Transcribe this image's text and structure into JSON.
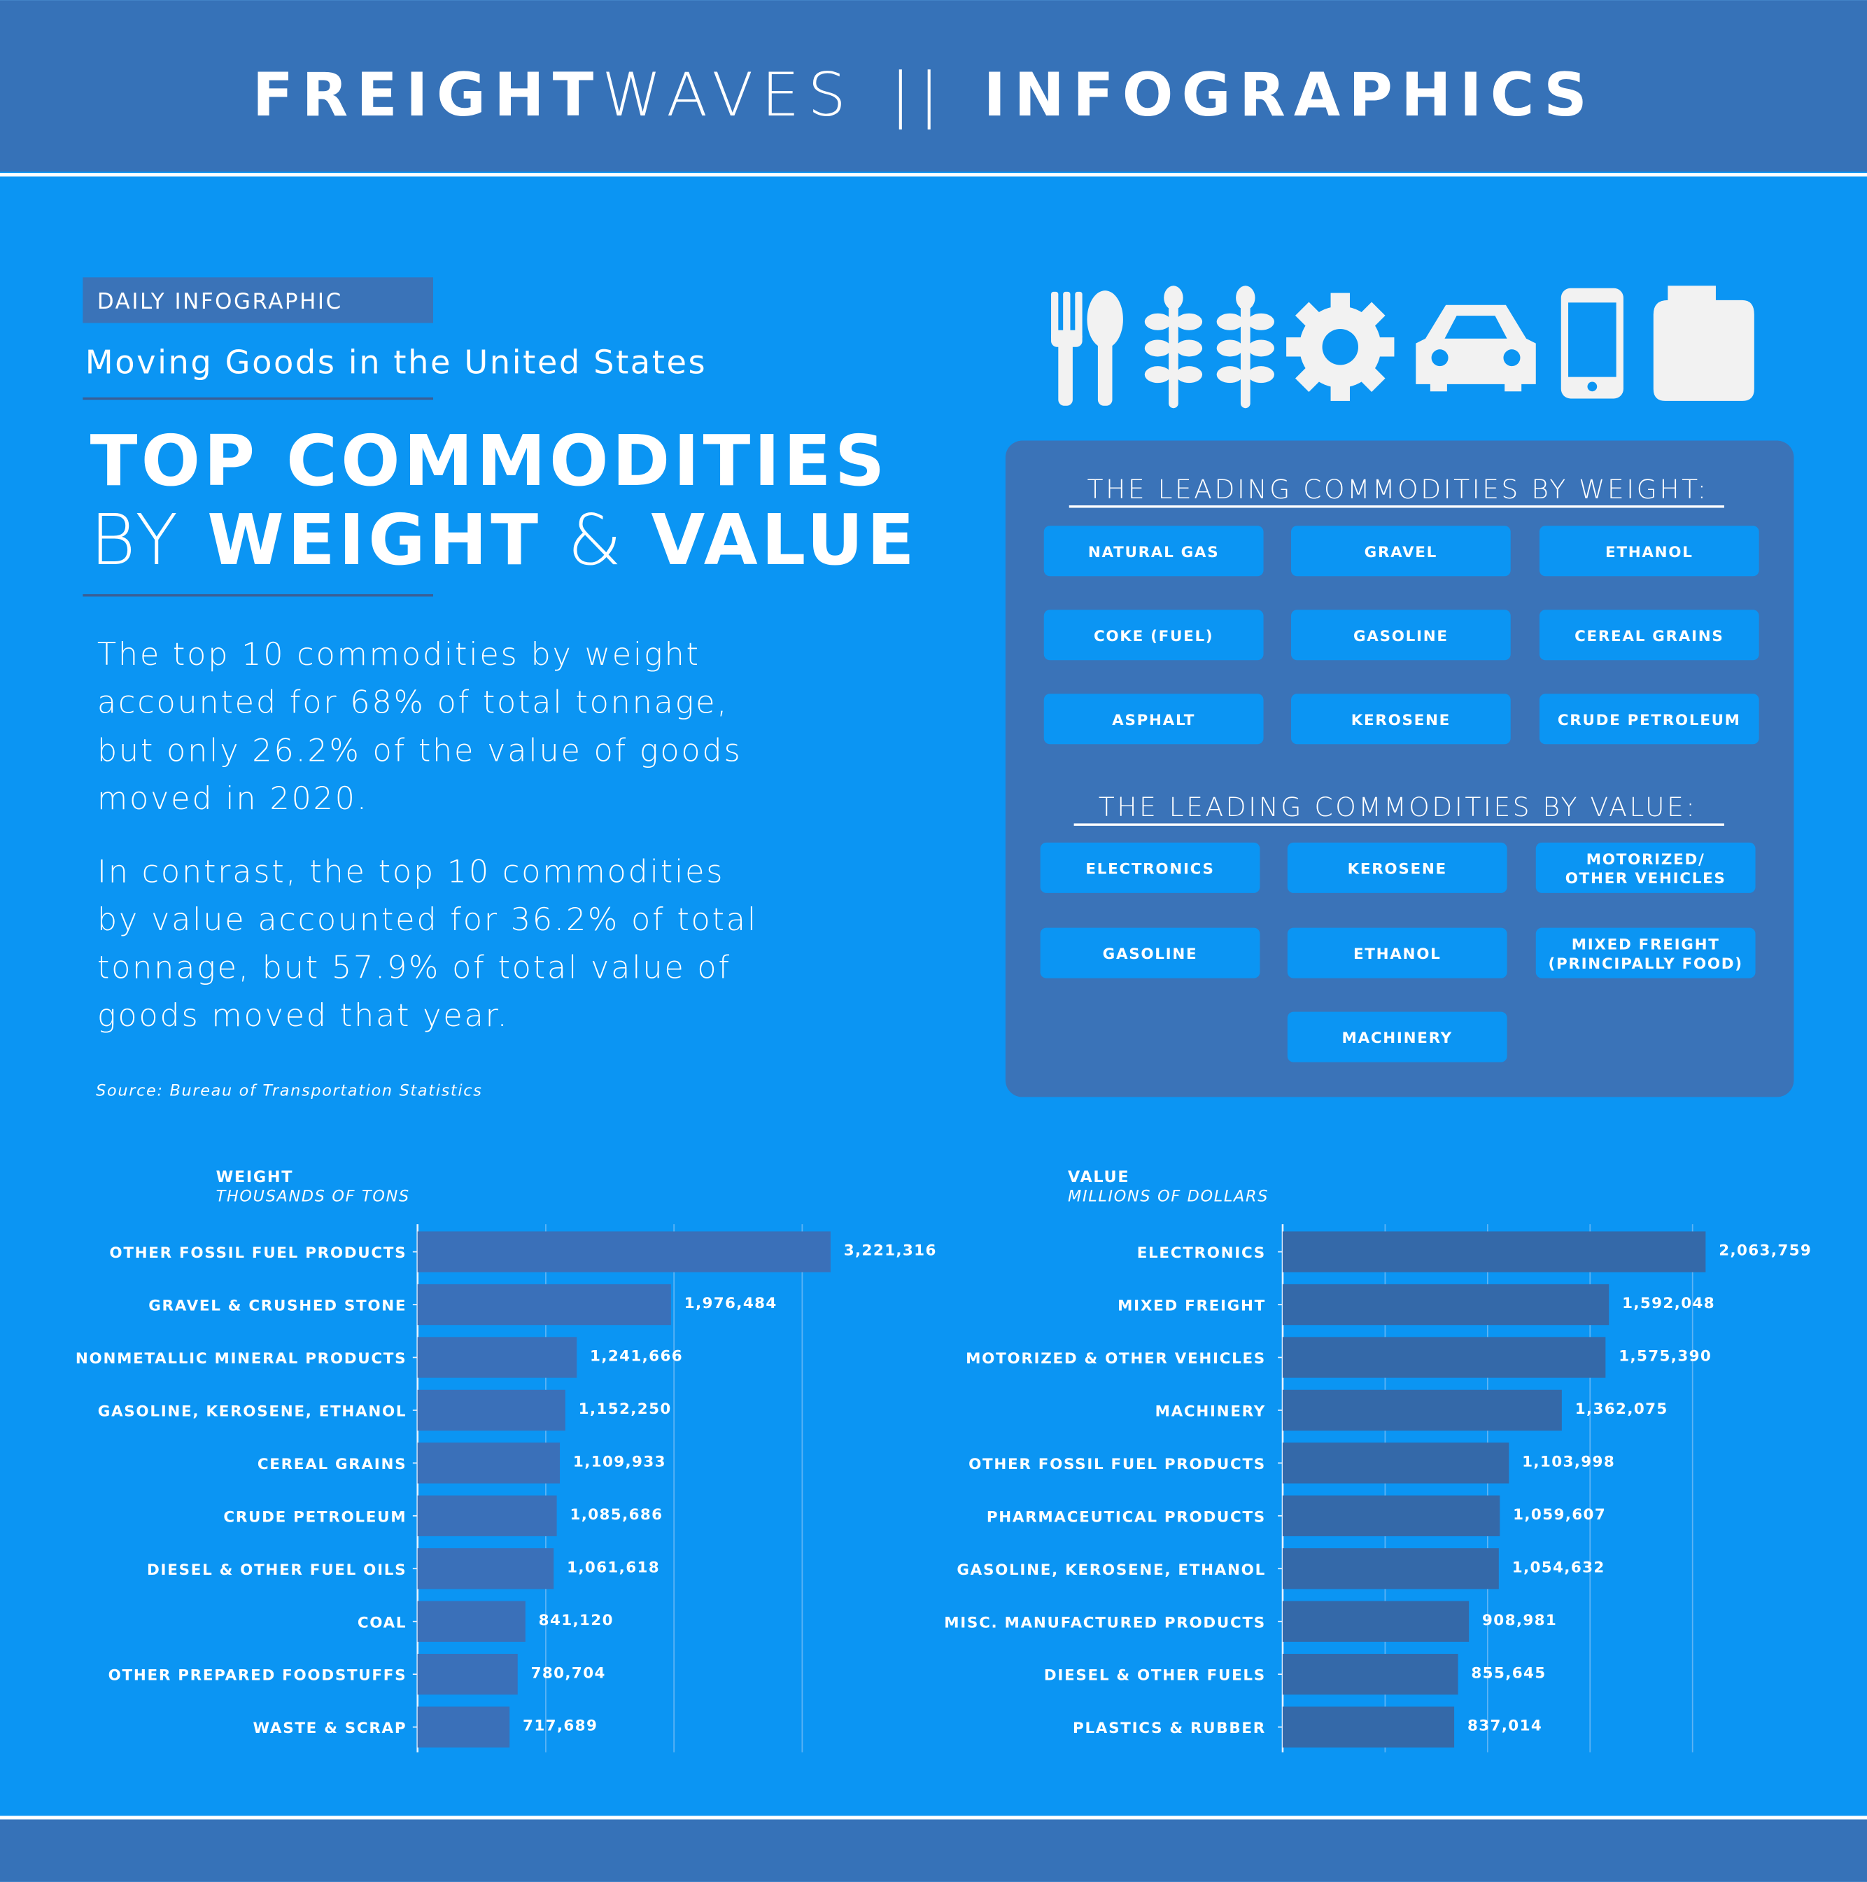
{
  "header": {
    "parts": [
      "FREIGHT",
      "WAVES",
      "||",
      "INFOGRAPHICS"
    ]
  },
  "tag": "DAILY INFOGRAPHIC",
  "subtitle": "Moving Goods in the United States",
  "title": {
    "line1": "TOP COMMODITIES",
    "line2": [
      "BY",
      "WEIGHT",
      "&",
      "VALUE"
    ]
  },
  "paragraphs": [
    [
      "The top 10 commodities by weight",
      "accounted for 68% of total tonnage,",
      "but only 26.2% of the value of goods",
      "moved in 2020."
    ],
    [
      "In contrast, the top 10 commodities",
      "by value accounted for 36.2% of total",
      "tonnage, but 57.9% of total value of",
      "goods moved that year."
    ]
  ],
  "source": "Source: Bureau of Transportation Statistics",
  "weight_panel": {
    "heading": "THE LEADING COMMODITIES BY WEIGHT:",
    "items": [
      [
        "NATURAL GAS"
      ],
      [
        "GRAVEL"
      ],
      [
        "ETHANOL"
      ],
      [
        "COKE (FUEL)"
      ],
      [
        "GASOLINE"
      ],
      [
        "CEREAL GRAINS"
      ],
      [
        "ASPHALT"
      ],
      [
        "KEROSENE"
      ],
      [
        "CRUDE PETROLEUM"
      ]
    ]
  },
  "value_panel": {
    "heading": "THE LEADING COMMODITIES BY VALUE:",
    "items": [
      [
        "ELECTRONICS"
      ],
      [
        "KEROSENE"
      ],
      [
        "MOTORIZED/",
        "OTHER VEHICLES"
      ],
      [
        "GASOLINE"
      ],
      [
        "ETHANOL"
      ],
      [
        "MIXED FREIGHT",
        "(PRINCIPALLY FOOD)"
      ],
      [
        "MACHINERY"
      ]
    ]
  },
  "chart_data": [
    {
      "type": "bar",
      "orientation": "horizontal",
      "title": "WEIGHT",
      "subtitle": "THOUSANDS OF TONS",
      "categories": [
        "OTHER FOSSIL FUEL PRODUCTS",
        "GRAVEL & CRUSHED STONE",
        "NONMETALLIC MINERAL PRODUCTS",
        "GASOLINE, KEROSENE, ETHANOL",
        "CEREAL GRAINS",
        "CRUDE PETROLEUM",
        "DIESEL & OTHER FUEL OILS",
        "COAL",
        "OTHER PREPARED FOODSTUFFS",
        "WASTE & SCRAP"
      ],
      "values": [
        3221316,
        1976484,
        1241666,
        1152250,
        1109933,
        1085686,
        1061618,
        841120,
        780704,
        717689
      ],
      "value_labels": [
        "3,221,316",
        "1,976,484",
        "1,241,666",
        "1,152,250",
        "1,109,933",
        "1,085,686",
        "1,061,618",
        "841,120",
        "780,704",
        "717,689"
      ],
      "color": "#3a70b9",
      "xlim": [
        0,
        3500000
      ],
      "xticks": [
        0,
        1000000,
        2000000,
        3000000
      ],
      "grid": true
    },
    {
      "type": "bar",
      "orientation": "horizontal",
      "title": "VALUE",
      "subtitle": "MILLIONS OF DOLLARS",
      "categories": [
        "ELECTRONICS",
        "MIXED FREIGHT",
        "MOTORIZED & OTHER VEHICLES",
        "MACHINERY",
        "OTHER FOSSIL FUEL PRODUCTS",
        "PHARMACEUTICAL PRODUCTS",
        "GASOLINE, KEROSENE, ETHANOL",
        "MISC. MANUFACTURED PRODUCTS",
        "DIESEL & OTHER FUELS",
        "PLASTICS & RUBBER"
      ],
      "values": [
        2063759,
        1592048,
        1575390,
        1362075,
        1103998,
        1059607,
        1054632,
        908981,
        855645,
        837014
      ],
      "value_labels": [
        "2,063,759",
        "1,592,048",
        "1,575,390",
        "1,362,075",
        "1,103,998",
        "1,059,607",
        "1,054,632",
        "908,981",
        "855,645",
        "837,014"
      ],
      "color": "#3469a9",
      "xlim": [
        0,
        2500000
      ],
      "xticks": [
        0,
        500000,
        1000000,
        1500000,
        2000000
      ],
      "grid": true
    }
  ]
}
